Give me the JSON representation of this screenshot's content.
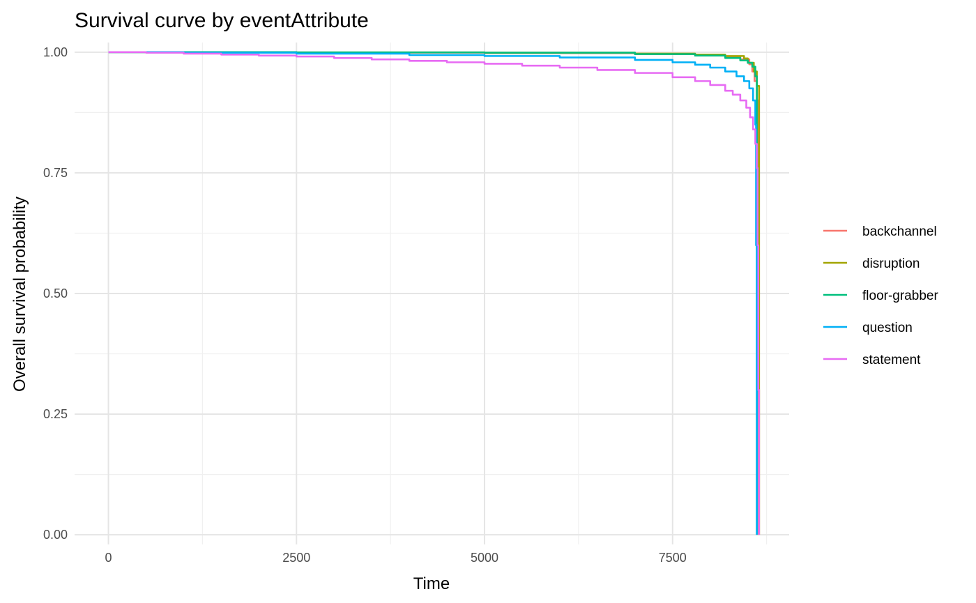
{
  "chart_data": {
    "type": "line",
    "title": "Survival curve by eventAttribute",
    "xlabel": "Time",
    "ylabel": "Overall survival probability",
    "xlim": [
      -450,
      9050
    ],
    "ylim": [
      -0.02,
      1.02
    ],
    "x_ticks": [
      0,
      2500,
      5000,
      7500
    ],
    "x_tick_labels": [
      "0",
      "2500",
      "5000",
      "7500"
    ],
    "x_minor_ticks": [
      1250,
      3750,
      6250,
      8750
    ],
    "y_ticks": [
      0,
      0.25,
      0.5,
      0.75,
      1.0
    ],
    "y_tick_labels": [
      "0.00",
      "0.25",
      "0.50",
      "0.75",
      "1.00"
    ],
    "y_minor_ticks": [
      0.125,
      0.375,
      0.625,
      0.875
    ],
    "grid": true,
    "legend_position": "right",
    "series": [
      {
        "name": "backchannel",
        "color": "#F8766D",
        "points": [
          [
            0,
            1.0
          ],
          [
            1000,
            0.9995
          ],
          [
            2500,
            0.999
          ],
          [
            5000,
            0.998
          ],
          [
            7000,
            0.996
          ],
          [
            7800,
            0.993
          ],
          [
            8200,
            0.99
          ],
          [
            8400,
            0.985
          ],
          [
            8520,
            0.975
          ],
          [
            8560,
            0.96
          ],
          [
            8590,
            0.94
          ],
          [
            8620,
            0.9
          ],
          [
            8640,
            0.0
          ]
        ]
      },
      {
        "name": "disruption",
        "color": "#A3A500",
        "points": [
          [
            0,
            1.0
          ],
          [
            2500,
            0.9995
          ],
          [
            5000,
            0.999
          ],
          [
            7000,
            0.997
          ],
          [
            7800,
            0.995
          ],
          [
            8200,
            0.992
          ],
          [
            8450,
            0.987
          ],
          [
            8500,
            0.978
          ],
          [
            8580,
            0.96
          ],
          [
            8620,
            0.93
          ],
          [
            8650,
            0.0
          ]
        ]
      },
      {
        "name": "floor-grabber",
        "color": "#00BF7D",
        "points": [
          [
            0,
            1.0
          ],
          [
            2500,
            0.9995
          ],
          [
            5000,
            0.999
          ],
          [
            7000,
            0.996
          ],
          [
            7800,
            0.993
          ],
          [
            8200,
            0.988
          ],
          [
            8400,
            0.983
          ],
          [
            8500,
            0.978
          ],
          [
            8560,
            0.97
          ],
          [
            8600,
            0.95
          ],
          [
            8620,
            0.0
          ]
        ]
      },
      {
        "name": "question",
        "color": "#00B0F6",
        "points": [
          [
            0,
            1.0
          ],
          [
            1000,
            0.999
          ],
          [
            2500,
            0.997
          ],
          [
            4000,
            0.994
          ],
          [
            5000,
            0.992
          ],
          [
            6000,
            0.989
          ],
          [
            7000,
            0.984
          ],
          [
            7500,
            0.979
          ],
          [
            7800,
            0.974
          ],
          [
            8000,
            0.968
          ],
          [
            8200,
            0.96
          ],
          [
            8350,
            0.95
          ],
          [
            8450,
            0.94
          ],
          [
            8520,
            0.925
          ],
          [
            8570,
            0.9
          ],
          [
            8600,
            0.85
          ],
          [
            8610,
            0.6
          ],
          [
            8620,
            0.0
          ]
        ]
      },
      {
        "name": "statement",
        "color": "#E76BF3",
        "points": [
          [
            0,
            1.0
          ],
          [
            500,
            0.999
          ],
          [
            1000,
            0.997
          ],
          [
            1500,
            0.995
          ],
          [
            2000,
            0.993
          ],
          [
            2500,
            0.991
          ],
          [
            3000,
            0.988
          ],
          [
            3500,
            0.985
          ],
          [
            4000,
            0.982
          ],
          [
            4500,
            0.979
          ],
          [
            5000,
            0.976
          ],
          [
            5500,
            0.972
          ],
          [
            6000,
            0.968
          ],
          [
            6500,
            0.963
          ],
          [
            7000,
            0.957
          ],
          [
            7500,
            0.948
          ],
          [
            7800,
            0.94
          ],
          [
            8000,
            0.932
          ],
          [
            8200,
            0.92
          ],
          [
            8300,
            0.912
          ],
          [
            8400,
            0.9
          ],
          [
            8480,
            0.885
          ],
          [
            8530,
            0.865
          ],
          [
            8570,
            0.84
          ],
          [
            8600,
            0.81
          ],
          [
            8620,
            0.76
          ],
          [
            8630,
            0.6
          ],
          [
            8640,
            0.3
          ],
          [
            8650,
            0.0
          ]
        ]
      }
    ]
  }
}
